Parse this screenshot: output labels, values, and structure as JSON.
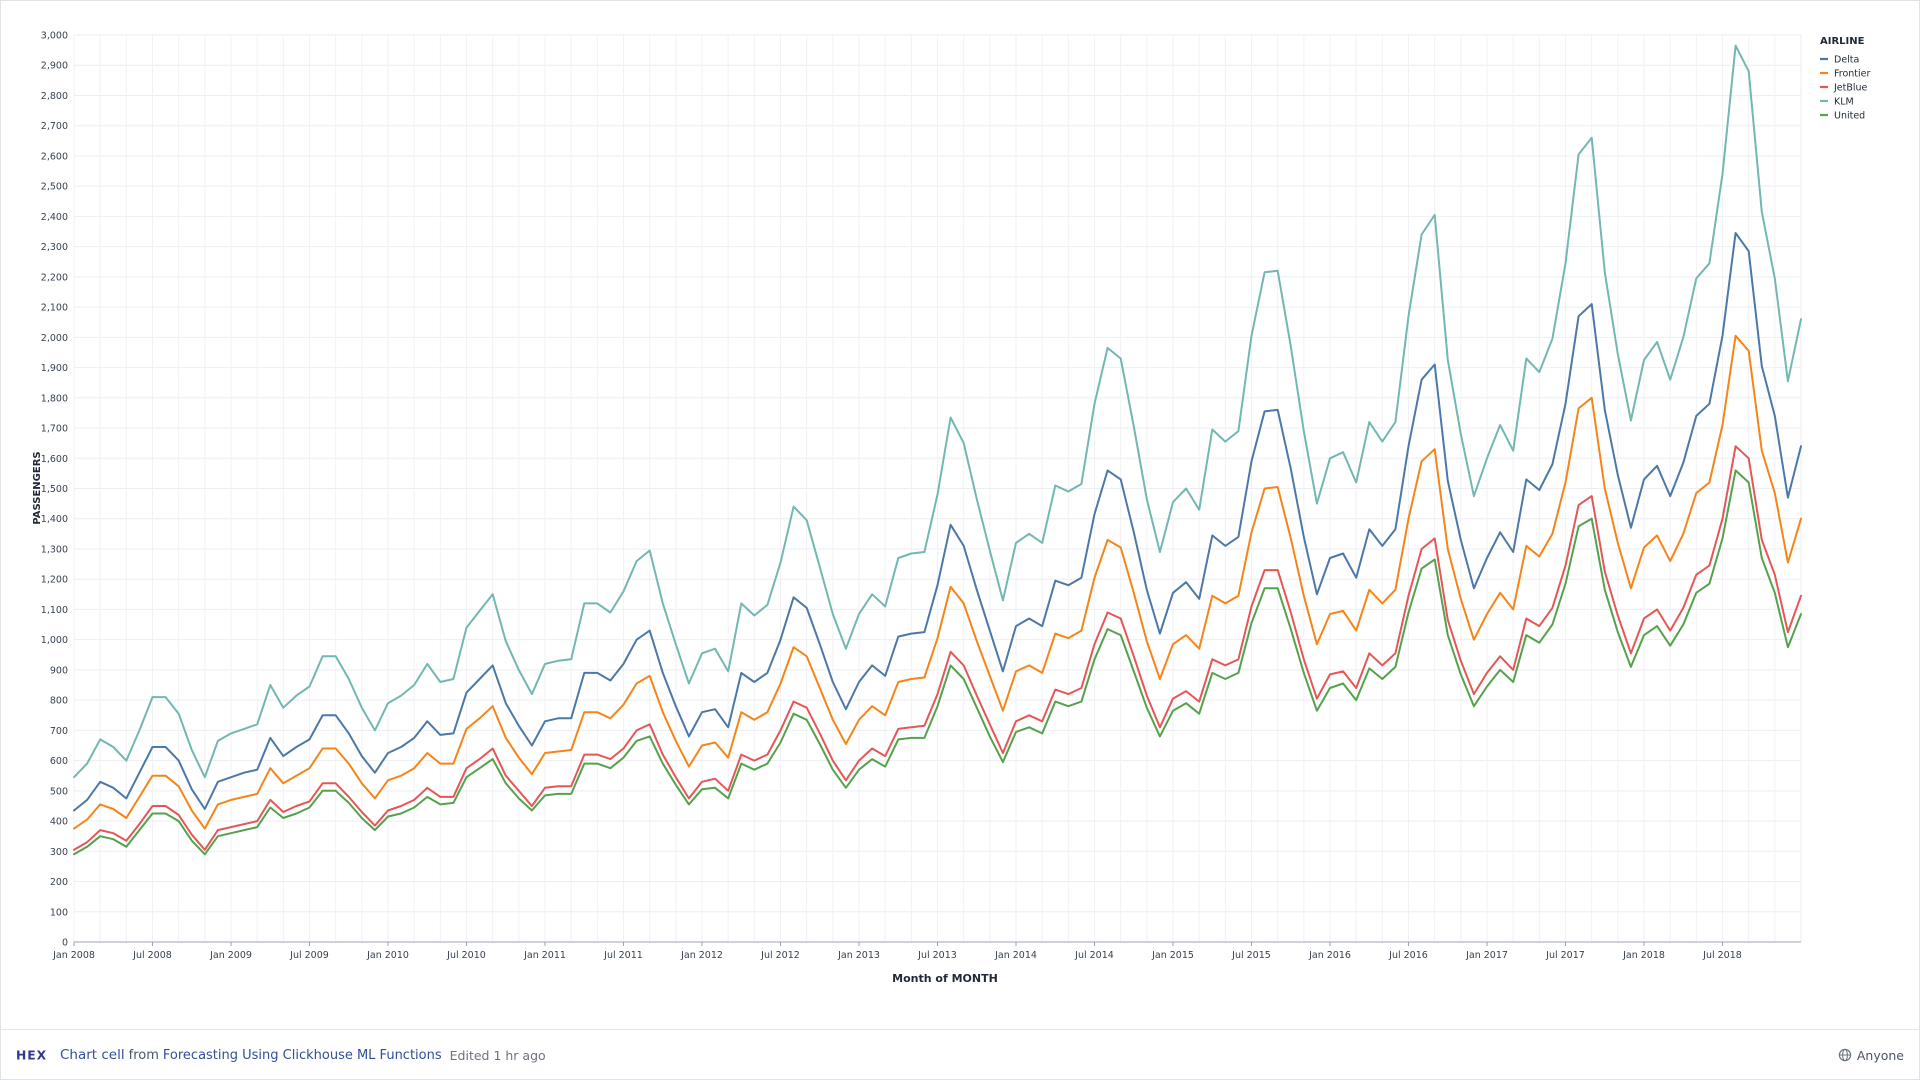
{
  "chart_data": {
    "type": "line",
    "xlabel": "Month of MONTH",
    "ylabel": "PASSENGERS",
    "ylim": [
      0,
      3000
    ],
    "y_ticks": [
      0,
      100,
      200,
      300,
      400,
      500,
      600,
      700,
      800,
      900,
      1000,
      1100,
      1200,
      1300,
      1400,
      1500,
      1600,
      1700,
      1800,
      1900,
      2000,
      2100,
      2200,
      2300,
      2400,
      2500,
      2600,
      2700,
      2800,
      2900,
      3000
    ],
    "y_tick_labels": [
      "0",
      "100",
      "200",
      "300",
      "400",
      "500",
      "600",
      "700",
      "800",
      "900",
      "1,000",
      "1,100",
      "1,200",
      "1,300",
      "1,400",
      "1,500",
      "1,600",
      "1,700",
      "1,800",
      "1,900",
      "2,000",
      "2,100",
      "2,200",
      "2,300",
      "2,400",
      "2,500",
      "2,600",
      "2,700",
      "2,800",
      "2,900",
      "3,000"
    ],
    "x_start": "Jan 2008",
    "x_end": "Dec 2018",
    "x_tick_labels": [
      "Jan 2008",
      "Jul 2008",
      "Jan 2009",
      "Jul 2009",
      "Jan 2010",
      "Jul 2010",
      "Jan 2011",
      "Jul 2011",
      "Jan 2012",
      "Jul 2012",
      "Jan 2013",
      "Jul 2013",
      "Jan 2014",
      "Jul 2014",
      "Jan 2015",
      "Jul 2015",
      "Jan 2016",
      "Jul 2016",
      "Jan 2017",
      "Jul 2017",
      "Jan 2018",
      "Jul 2018"
    ],
    "grid": true,
    "legend_title": "AIRLINE",
    "legend_position": "top-right",
    "series": [
      {
        "name": "Delta",
        "color": "#4c78a8",
        "values": [
          435,
          470,
          530,
          510,
          475,
          560,
          645,
          645,
          600,
          505,
          440,
          530,
          545,
          560,
          570,
          675,
          615,
          645,
          670,
          750,
          750,
          690,
          615,
          560,
          625,
          645,
          675,
          730,
          685,
          690,
          825,
          870,
          915,
          790,
          715,
          650,
          730,
          740,
          740,
          890,
          890,
          865,
          920,
          1000,
          1030,
          890,
          780,
          680,
          760,
          770,
          710,
          890,
          860,
          890,
          1000,
          1140,
          1105,
          985,
          860,
          770,
          860,
          915,
          880,
          1010,
          1020,
          1025,
          1180,
          1380,
          1310,
          1165,
          1030,
          895,
          1045,
          1070,
          1045,
          1195,
          1180,
          1205,
          1415,
          1560,
          1530,
          1355,
          1165,
          1020,
          1155,
          1190,
          1135,
          1345,
          1310,
          1340,
          1590,
          1755,
          1760,
          1565,
          1340,
          1150,
          1270,
          1285,
          1205,
          1365,
          1310,
          1365,
          1640,
          1860,
          1910,
          1525,
          1330,
          1170,
          1270,
          1355,
          1290,
          1530,
          1495,
          1580,
          1780,
          2070,
          2110,
          1760,
          1545,
          1370,
          1530,
          1575,
          1475,
          1585,
          1740,
          1780,
          2005,
          2345,
          2285,
          1905,
          1740,
          1470,
          1640
        ]
      },
      {
        "name": "Frontier",
        "color": "#f58518",
        "values": [
          375,
          405,
          455,
          440,
          410,
          480,
          550,
          550,
          515,
          435,
          375,
          455,
          470,
          480,
          490,
          575,
          525,
          550,
          575,
          640,
          640,
          590,
          525,
          475,
          535,
          550,
          575,
          625,
          590,
          590,
          705,
          740,
          780,
          675,
          610,
          555,
          625,
          630,
          635,
          760,
          760,
          740,
          785,
          855,
          880,
          760,
          665,
          580,
          650,
          660,
          610,
          760,
          735,
          760,
          855,
          975,
          945,
          840,
          735,
          655,
          735,
          780,
          750,
          860,
          870,
          875,
          1005,
          1175,
          1120,
          995,
          880,
          765,
          895,
          915,
          890,
          1020,
          1005,
          1030,
          1205,
          1330,
          1305,
          1155,
          995,
          870,
          985,
          1015,
          970,
          1145,
          1120,
          1145,
          1355,
          1500,
          1505,
          1335,
          1145,
          985,
          1085,
          1095,
          1030,
          1165,
          1120,
          1165,
          1400,
          1590,
          1630,
          1300,
          1135,
          1000,
          1085,
          1155,
          1100,
          1310,
          1275,
          1350,
          1520,
          1765,
          1800,
          1500,
          1320,
          1170,
          1305,
          1345,
          1260,
          1350,
          1485,
          1520,
          1710,
          2005,
          1955,
          1625,
          1485,
          1255,
          1400
        ]
      },
      {
        "name": "JetBlue",
        "color": "#e45756",
        "values": [
          305,
          330,
          370,
          360,
          335,
          390,
          450,
          450,
          420,
          355,
          305,
          370,
          380,
          390,
          400,
          470,
          430,
          450,
          465,
          525,
          525,
          480,
          430,
          385,
          435,
          450,
          470,
          510,
          480,
          480,
          575,
          605,
          640,
          550,
          500,
          450,
          510,
          515,
          515,
          620,
          620,
          605,
          640,
          700,
          720,
          620,
          545,
          475,
          530,
          540,
          500,
          620,
          600,
          620,
          700,
          795,
          775,
          690,
          600,
          535,
          600,
          640,
          615,
          705,
          710,
          715,
          820,
          960,
          915,
          815,
          720,
          625,
          730,
          750,
          730,
          835,
          820,
          840,
          985,
          1090,
          1070,
          945,
          815,
          710,
          805,
          830,
          795,
          935,
          915,
          935,
          1110,
          1230,
          1230,
          1090,
          935,
          805,
          885,
          895,
          840,
          955,
          915,
          955,
          1145,
          1300,
          1335,
          1065,
          930,
          820,
          890,
          945,
          900,
          1070,
          1045,
          1105,
          1245,
          1445,
          1475,
          1225,
          1080,
          955,
          1070,
          1100,
          1030,
          1105,
          1215,
          1245,
          1400,
          1640,
          1600,
          1330,
          1215,
          1025,
          1145
        ]
      },
      {
        "name": "KLM",
        "color": "#72b7b2",
        "values": [
          545,
          590,
          670,
          645,
          600,
          700,
          810,
          810,
          755,
          635,
          545,
          665,
          690,
          705,
          720,
          850,
          775,
          815,
          845,
          945,
          945,
          870,
          775,
          700,
          790,
          815,
          850,
          920,
          860,
          870,
          1040,
          1095,
          1150,
          995,
          900,
          820,
          920,
          930,
          935,
          1120,
          1120,
          1090,
          1160,
          1260,
          1295,
          1120,
          985,
          855,
          955,
          970,
          895,
          1120,
          1080,
          1115,
          1255,
          1440,
          1395,
          1240,
          1085,
          970,
          1085,
          1150,
          1110,
          1270,
          1285,
          1290,
          1480,
          1735,
          1650,
          1465,
          1295,
          1130,
          1320,
          1350,
          1320,
          1510,
          1490,
          1515,
          1780,
          1965,
          1930,
          1705,
          1465,
          1290,
          1455,
          1500,
          1430,
          1695,
          1655,
          1690,
          2005,
          2215,
          2220,
          1970,
          1690,
          1450,
          1600,
          1620,
          1520,
          1720,
          1655,
          1720,
          2070,
          2340,
          2405,
          1925,
          1680,
          1475,
          1600,
          1710,
          1625,
          1930,
          1885,
          1995,
          2245,
          2605,
          2660,
          2215,
          1945,
          1725,
          1925,
          1985,
          1860,
          2000,
          2195,
          2245,
          2540,
          2965,
          2880,
          2415,
          2195,
          1855,
          2060
        ]
      },
      {
        "name": "United",
        "color": "#54a24b",
        "values": [
          290,
          315,
          350,
          340,
          315,
          370,
          425,
          425,
          400,
          335,
          290,
          350,
          360,
          370,
          380,
          445,
          410,
          425,
          445,
          500,
          500,
          460,
          410,
          370,
          415,
          425,
          445,
          480,
          455,
          460,
          545,
          575,
          605,
          525,
          475,
          435,
          485,
          490,
          490,
          590,
          590,
          575,
          610,
          665,
          680,
          590,
          520,
          455,
          505,
          510,
          475,
          590,
          570,
          590,
          660,
          755,
          735,
          655,
          570,
          510,
          570,
          605,
          580,
          670,
          675,
          675,
          780,
          915,
          870,
          775,
          680,
          595,
          695,
          710,
          690,
          795,
          780,
          795,
          935,
          1035,
          1015,
          895,
          775,
          680,
          765,
          790,
          755,
          890,
          870,
          890,
          1055,
          1170,
          1170,
          1035,
          890,
          765,
          840,
          855,
          800,
          905,
          870,
          910,
          1090,
          1235,
          1265,
          1015,
          885,
          780,
          845,
          900,
          860,
          1015,
          990,
          1050,
          1185,
          1375,
          1400,
          1165,
          1025,
          910,
          1015,
          1045,
          980,
          1050,
          1155,
          1185,
          1335,
          1560,
          1520,
          1270,
          1155,
          975,
          1085
        ]
      }
    ]
  },
  "footer": {
    "logo_text": "HEX",
    "cell_label": "Chart cell",
    "from_text": "from",
    "project_name": "Forecasting Using Clickhouse ML Functions",
    "edited_text": "Edited 1 hr ago",
    "access_label": "Anyone"
  }
}
